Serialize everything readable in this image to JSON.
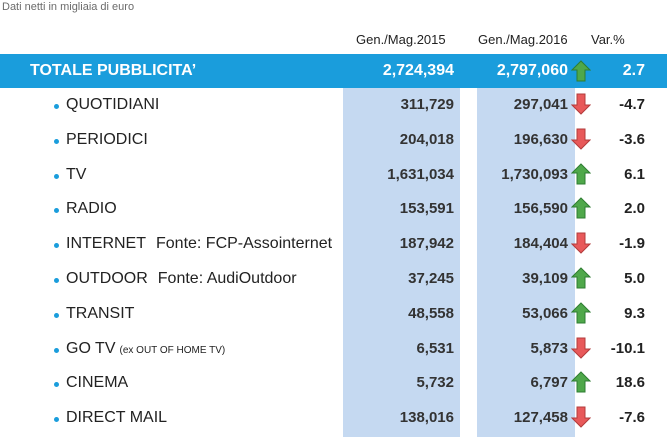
{
  "subtitle": "Dati netti in migliaia di euro",
  "headers": {
    "col2015": "Gen./Mag.2015",
    "col2016": "Gen./Mag.2016",
    "var": "Var.%"
  },
  "total": {
    "label": "TOTALE PUBBLICITA’",
    "v2015": "2,724,394",
    "v2016": "2,797,060",
    "var": "2.7",
    "trend": "up"
  },
  "rows": [
    {
      "label": "QUOTIDIANI",
      "note": "",
      "small": "",
      "v2015": "311,729",
      "v2016": "297,041",
      "var": "-4.7",
      "trend": "down"
    },
    {
      "label": "PERIODICI",
      "note": "",
      "small": "",
      "v2015": "204,018",
      "v2016": "196,630",
      "var": "-3.6",
      "trend": "down"
    },
    {
      "label": "TV",
      "note": "",
      "small": "",
      "v2015": "1,631,034",
      "v2016": "1,730,093",
      "var": "6.1",
      "trend": "up"
    },
    {
      "label": "RADIO",
      "note": "",
      "small": "",
      "v2015": "153,591",
      "v2016": "156,590",
      "var": "2.0",
      "trend": "up"
    },
    {
      "label": "INTERNET",
      "note": "Fonte: FCP-Assointernet",
      "small": "",
      "v2015": "187,942",
      "v2016": "184,404",
      "var": "-1.9",
      "trend": "down"
    },
    {
      "label": "OUTDOOR",
      "note": "Fonte: AudiOutdoor",
      "small": "",
      "v2015": "37,245",
      "v2016": "39,109",
      "var": "5.0",
      "trend": "up"
    },
    {
      "label": "TRANSIT",
      "note": "",
      "small": "",
      "v2015": "48,558",
      "v2016": "53,066",
      "var": "9.3",
      "trend": "up"
    },
    {
      "label": "GO TV",
      "note": "",
      "small": "(ex OUT OF HOME TV)",
      "v2015": "6,531",
      "v2016": "5,873",
      "var": "-10.1",
      "trend": "down"
    },
    {
      "label": "CINEMA",
      "note": "",
      "small": "",
      "v2015": "5,732",
      "v2016": "6,797",
      "var": "18.6",
      "trend": "up"
    },
    {
      "label": "DIRECT MAIL",
      "note": "",
      "small": "",
      "v2015": "138,016",
      "v2016": "127,458",
      "var": "-7.6",
      "trend": "down"
    }
  ],
  "colors": {
    "header_bar": "#1a9ddc",
    "column_fill": "#c5d9f1",
    "arrow_up": "#4fa84a",
    "arrow_down": "#e8595a"
  }
}
